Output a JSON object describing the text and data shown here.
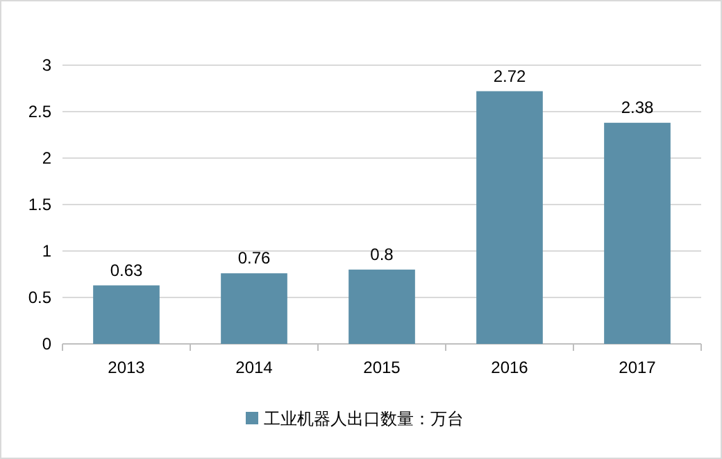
{
  "chart_data": {
    "type": "bar",
    "categories": [
      "2013",
      "2014",
      "2015",
      "2016",
      "2017"
    ],
    "series": [
      {
        "name": "工业机器人出口数量：万台",
        "color": "#5b8fa8",
        "values": [
          0.63,
          0.76,
          0.8,
          2.72,
          2.38
        ]
      }
    ],
    "ylim": [
      0,
      3
    ],
    "yticks": [
      0,
      0.5,
      1,
      1.5,
      2,
      2.5,
      3
    ],
    "grid": "y",
    "data_labels": true,
    "legend": "bottom"
  }
}
